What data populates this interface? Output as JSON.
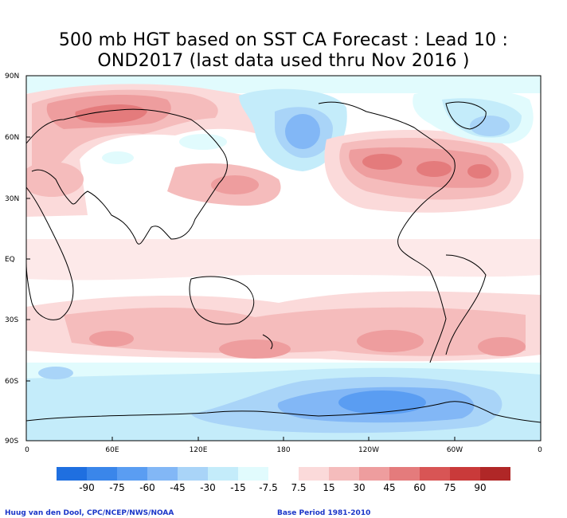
{
  "title": {
    "line1": "500 mb HGT based on SST CA Forecast : Lead 10 :",
    "line2": "OND2017 (last data used thru Nov 2016 )"
  },
  "axes": {
    "lat_labels": [
      "90N",
      "60N",
      "30N",
      "EQ",
      "30S",
      "60S",
      "90S"
    ],
    "lon_labels": [
      "0",
      "60E",
      "120E",
      "180",
      "120W",
      "60W",
      "0"
    ]
  },
  "colorbar": {
    "labels": [
      "-90",
      "-75",
      "-60",
      "-45",
      "-30",
      "-15",
      "-7.5",
      "7.5",
      "15",
      "30",
      "45",
      "60",
      "75",
      "90"
    ],
    "colors": [
      "#1f6fe0",
      "#3a86ea",
      "#5a9df2",
      "#82b7f6",
      "#a9d4f8",
      "#c4ecfa",
      "#e1fbfd",
      "#ffffff",
      "#fbdada",
      "#f5bcbc",
      "#ee9d9e",
      "#e47b7c",
      "#d85555",
      "#c93a3a",
      "#b02727"
    ]
  },
  "footer": {
    "left": "Huug van den Dool, CPC/NCEP/NWS/NOAA",
    "right": "Base Period 1981-2010"
  },
  "map_colors": {
    "ocean_bg": "#ffffff",
    "coast": "#000000",
    "frame": "#000000"
  }
}
